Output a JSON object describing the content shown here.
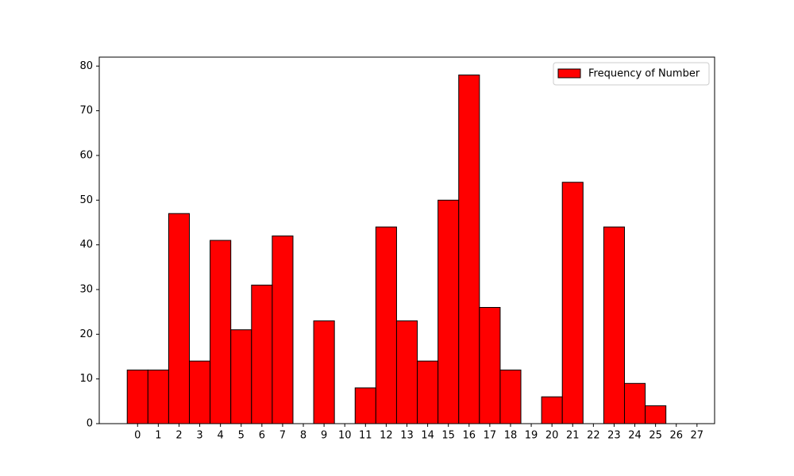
{
  "chart_data": {
    "type": "histogram",
    "bins": [
      -0.5,
      0.5,
      1.5,
      2.5,
      3.5,
      4.5,
      5.5,
      6.5,
      7.5,
      8.5,
      9.5,
      10.5,
      11.5,
      12.5,
      13.5,
      14.5,
      15.5,
      16.5,
      17.5,
      18.5,
      19.5,
      20.5,
      21.5,
      22.5,
      23.5,
      24.5,
      25.5,
      26.5
    ],
    "series": [
      {
        "name": "Frequency of Number",
        "color": "#ff0000",
        "values": [
          12,
          12,
          47,
          14,
          41,
          21,
          31,
          42,
          0,
          23,
          0,
          8,
          44,
          23,
          14,
          50,
          78,
          26,
          12,
          0,
          6,
          54,
          0,
          44,
          9,
          4,
          0
        ]
      }
    ],
    "xlim": [
      -1.85,
      27.85
    ],
    "xticks": [
      0,
      1,
      2,
      3,
      4,
      5,
      6,
      7,
      8,
      9,
      10,
      11,
      12,
      13,
      14,
      15,
      16,
      17,
      18,
      19,
      20,
      21,
      22,
      23,
      24,
      25,
      26,
      27
    ],
    "ylim": [
      0,
      82
    ],
    "yticks": [
      0,
      10,
      20,
      30,
      40,
      50,
      60,
      70,
      80
    ],
    "legend": "upper right"
  }
}
